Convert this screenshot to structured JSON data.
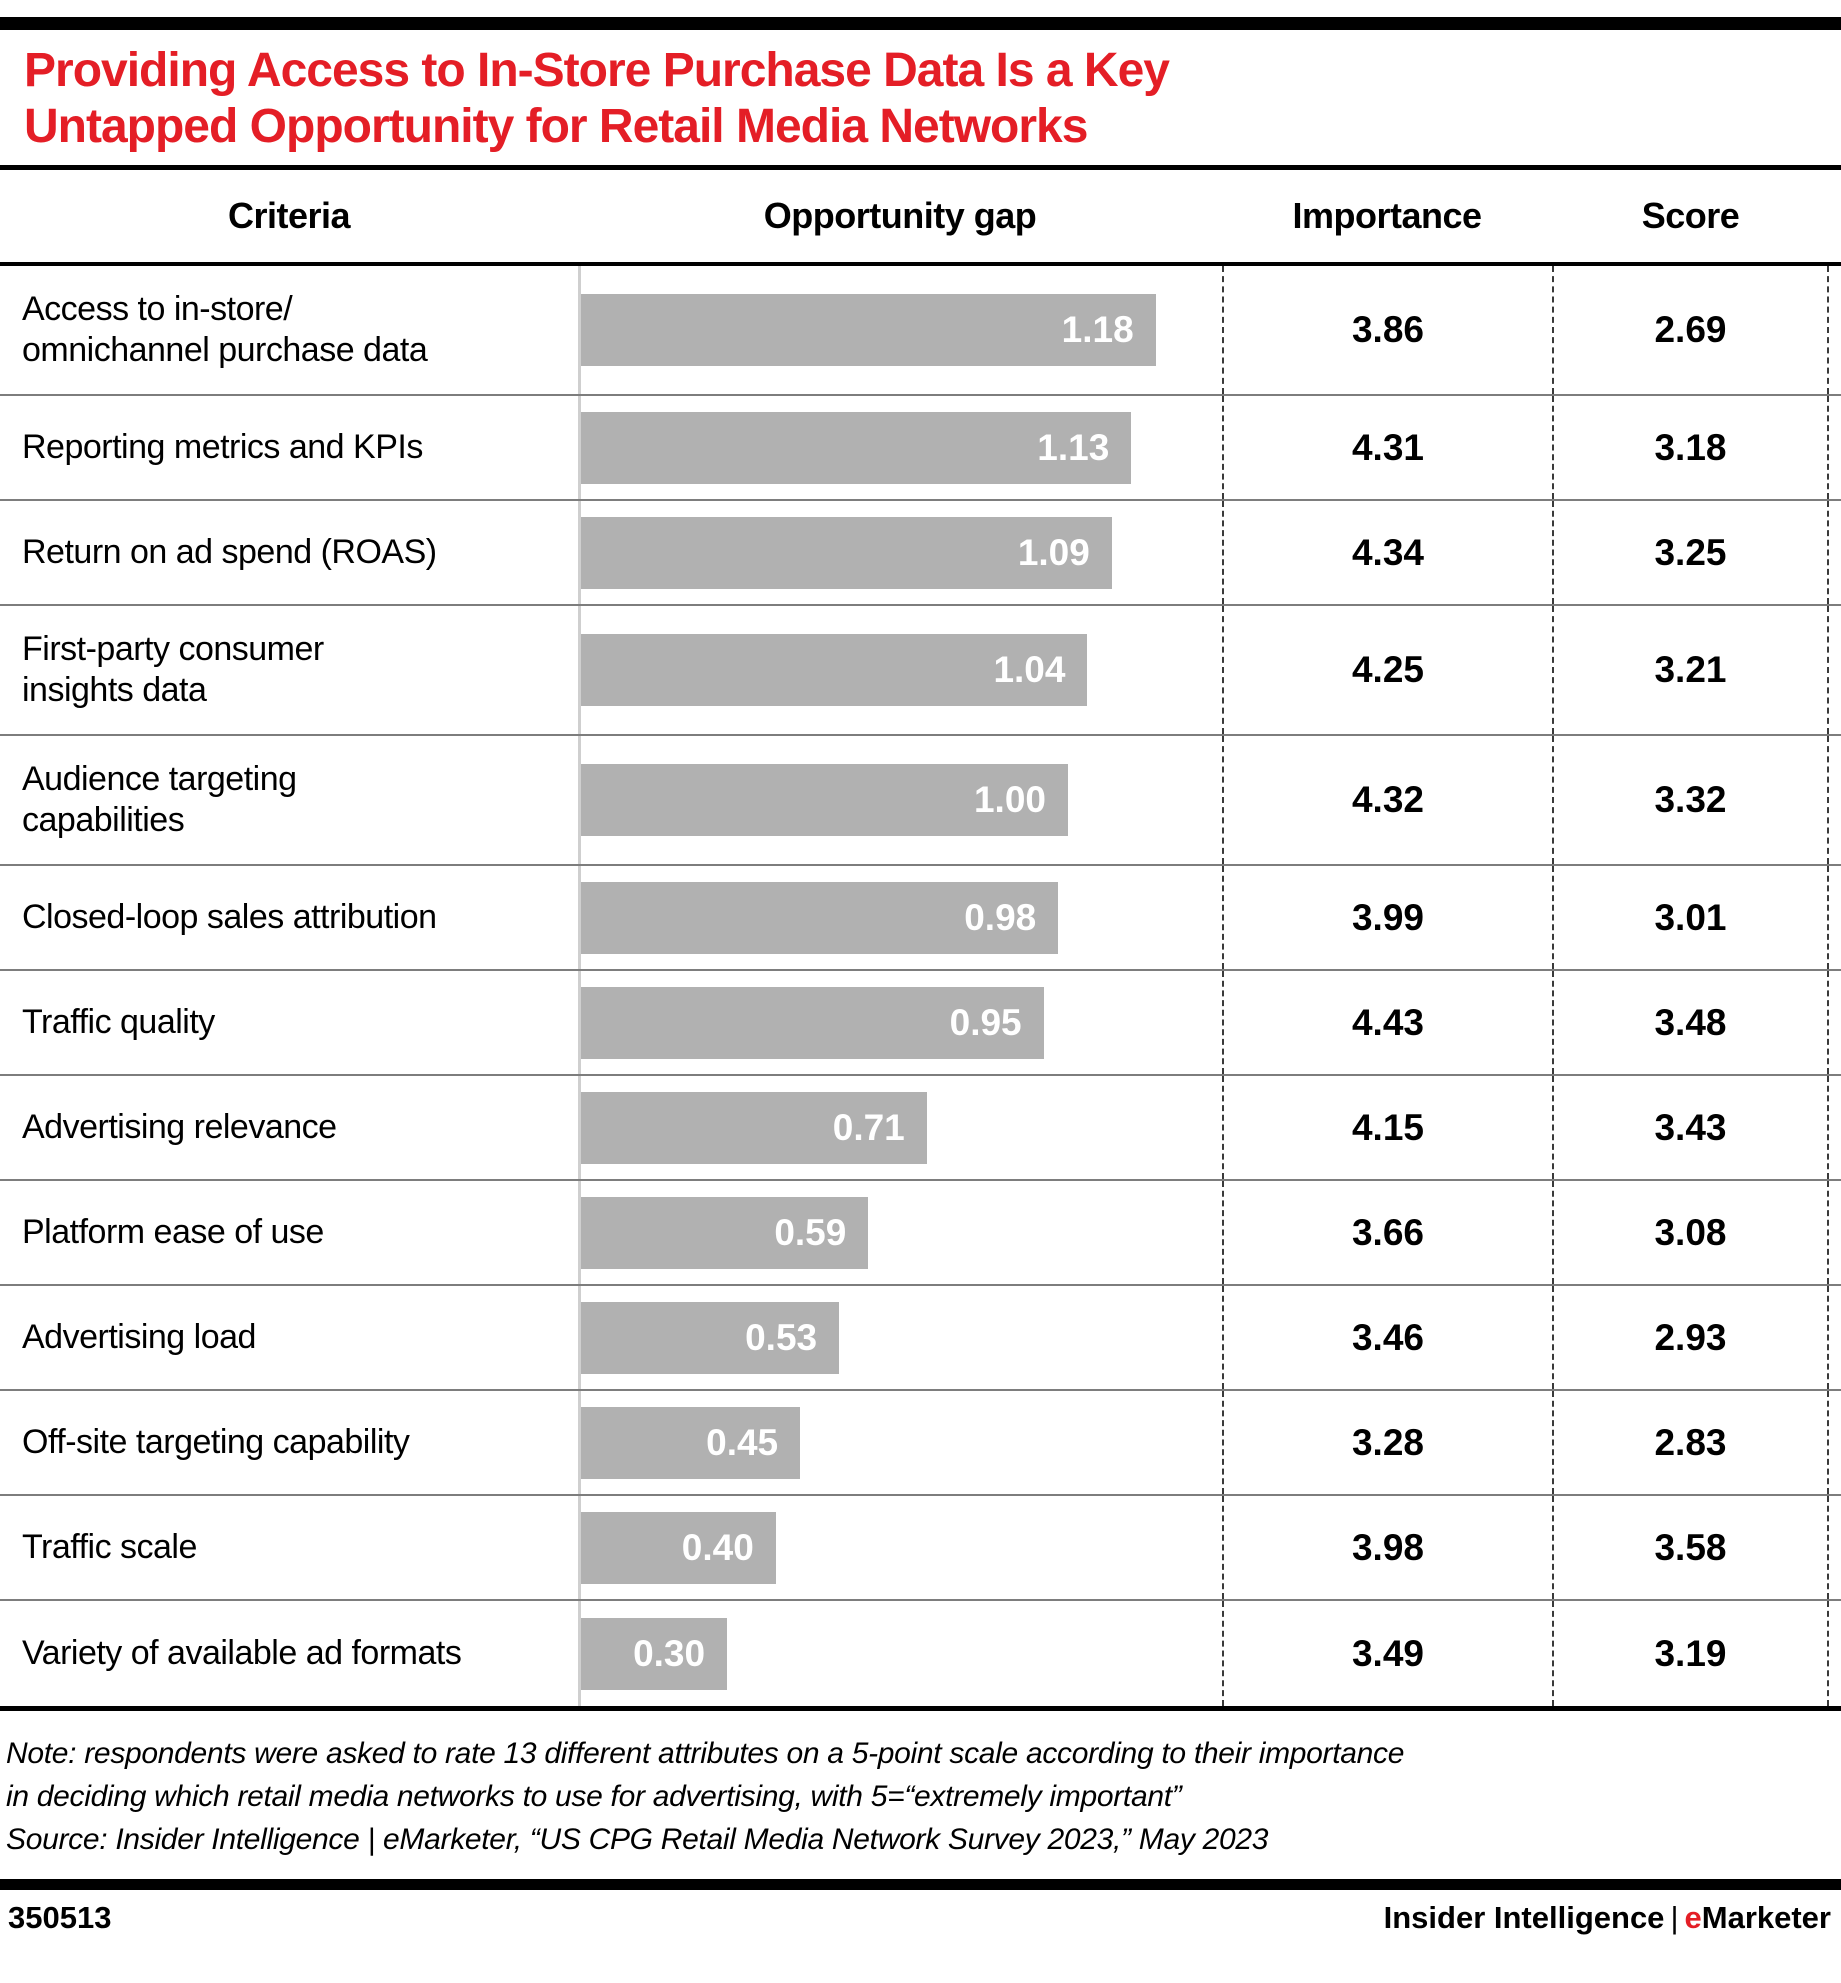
{
  "title": {
    "line1": "Providing Access to In-Store Purchase Data Is a Key",
    "line2": "Untapped Opportunity for Retail Media Networks"
  },
  "colors": {
    "accent_red": "#e41e26",
    "bar_gray": "#b1b1b1",
    "separator_gray": "#7d7d7d",
    "baseline_gray": "#cfcfcf",
    "dash_dark": "#3a3a3a"
  },
  "table": {
    "headers": {
      "criteria": "Criteria",
      "gap": "Opportunity gap",
      "importance": "Importance",
      "score": "Score"
    },
    "rows": [
      {
        "label": [
          "Access to in-store/",
          "omnichannel purchase data"
        ],
        "gap": "1.18",
        "importance": "3.86",
        "score": "2.69"
      },
      {
        "label": [
          "Reporting metrics and KPIs"
        ],
        "gap": "1.13",
        "importance": "4.31",
        "score": "3.18"
      },
      {
        "label": [
          "Return on ad spend (ROAS)"
        ],
        "gap": "1.09",
        "importance": "4.34",
        "score": "3.25"
      },
      {
        "label": [
          "First-party consumer",
          "insights data"
        ],
        "gap": "1.04",
        "importance": "4.25",
        "score": "3.21"
      },
      {
        "label": [
          "Audience targeting",
          "capabilities"
        ],
        "gap": "1.00",
        "importance": "4.32",
        "score": "3.32"
      },
      {
        "label": [
          "Closed-loop sales attribution"
        ],
        "gap": "0.98",
        "importance": "3.99",
        "score": "3.01"
      },
      {
        "label": [
          "Traffic quality"
        ],
        "gap": "0.95",
        "importance": "4.43",
        "score": "3.48"
      },
      {
        "label": [
          "Advertising relevance"
        ],
        "gap": "0.71",
        "importance": "4.15",
        "score": "3.43"
      },
      {
        "label": [
          "Platform ease of use"
        ],
        "gap": "0.59",
        "importance": "3.66",
        "score": "3.08"
      },
      {
        "label": [
          "Advertising load"
        ],
        "gap": "0.53",
        "importance": "3.46",
        "score": "2.93"
      },
      {
        "label": [
          "Off-site targeting capability"
        ],
        "gap": "0.45",
        "importance": "3.28",
        "score": "2.83"
      },
      {
        "label": [
          "Traffic scale"
        ],
        "gap": "0.40",
        "importance": "3.98",
        "score": "3.58"
      },
      {
        "label": [
          "Variety of available ad formats"
        ],
        "gap": "0.30",
        "importance": "3.49",
        "score": "3.19"
      }
    ]
  },
  "chart_data": {
    "type": "bar",
    "orientation": "horizontal",
    "title": "Providing Access to In-Store Purchase Data Is a Key Untapped Opportunity for Retail Media Networks",
    "categories": [
      "Access to in-store/omnichannel purchase data",
      "Reporting metrics and KPIs",
      "Return on ad spend (ROAS)",
      "First-party consumer insights data",
      "Audience targeting capabilities",
      "Closed-loop sales attribution",
      "Traffic quality",
      "Advertising relevance",
      "Platform ease of use",
      "Advertising load",
      "Off-site targeting capability",
      "Traffic scale",
      "Variety of available ad formats"
    ],
    "series": [
      {
        "name": "Opportunity gap",
        "values": [
          1.18,
          1.13,
          1.09,
          1.04,
          1.0,
          0.98,
          0.95,
          0.71,
          0.59,
          0.53,
          0.45,
          0.4,
          0.3
        ]
      },
      {
        "name": "Importance",
        "values": [
          3.86,
          4.31,
          4.34,
          4.25,
          4.32,
          3.99,
          4.43,
          4.15,
          3.66,
          3.46,
          3.28,
          3.98,
          3.49
        ]
      },
      {
        "name": "Score",
        "values": [
          2.69,
          3.18,
          3.25,
          3.21,
          3.32,
          3.01,
          3.48,
          3.43,
          3.08,
          2.93,
          2.83,
          3.58,
          3.19
        ]
      }
    ],
    "xlim": [
      0,
      1.25
    ],
    "value_labels_on_bars": true,
    "bar_color": "#b1b1b1",
    "grid": false,
    "legend": "none"
  },
  "note": {
    "line1": "Note: respondents were asked to rate 13 different attributes on a 5-point scale according to their importance",
    "line2": "in deciding which retail media networks to use for advertising, with 5=“extremely important”",
    "source": "Source: Insider Intelligence | eMarketer, “US CPG Retail Media Network Survey 2023,” May 2023"
  },
  "footer": {
    "chart_id": "350513",
    "brand_left": "Insider Intelligence",
    "separator": "|",
    "brand_e": "e",
    "brand_rest": "Marketer"
  }
}
